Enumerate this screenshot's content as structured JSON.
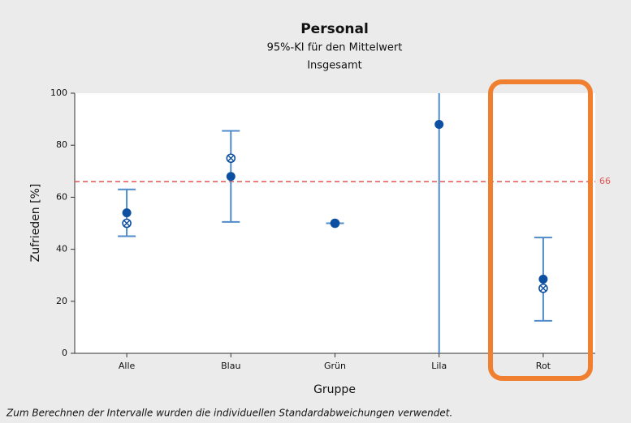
{
  "chart_data": {
    "type": "interval",
    "title": "Personal",
    "subtitle": "95%-KI für den Mittelwert",
    "subtitle2": "Insgesamt",
    "x_label": "Gruppe",
    "y_label": "Zufrieden [%]",
    "footnote": "Zum Berechnen der Intervalle wurden die individuellen Standardabweichungen verwendet.",
    "categories": [
      "Alle",
      "Blau",
      "Grün",
      "Lila",
      "Rot"
    ],
    "means": [
      54,
      68,
      50,
      88,
      28.5
    ],
    "markers": [
      50,
      75,
      50,
      null,
      25
    ],
    "ci_low": [
      45,
      50.5,
      50,
      0,
      12.5
    ],
    "ci_high": [
      63,
      85.5,
      50,
      100,
      44.5
    ],
    "ref_line": 66,
    "ref_color": "#e05555",
    "color": "#0d4fa0",
    "interval_color": "#4f8bc9",
    "ylim": [
      0,
      100
    ],
    "yticks": [
      0,
      20,
      40,
      60,
      80,
      100
    ]
  }
}
